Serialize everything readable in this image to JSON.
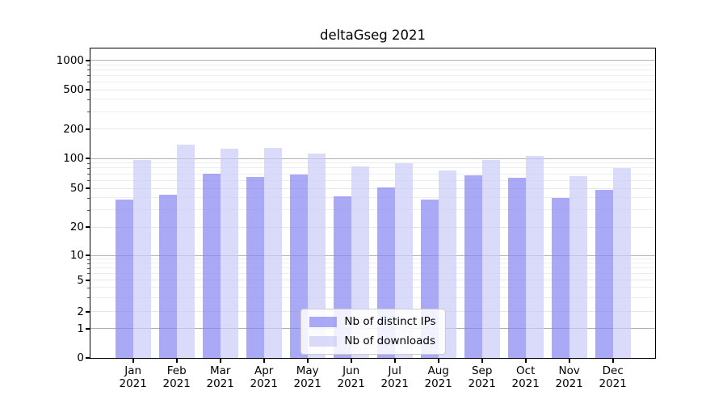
{
  "chart_data": {
    "type": "bar",
    "title": "deltaGseg 2021",
    "categories": [
      "Jan 2021",
      "Feb 2021",
      "Mar 2021",
      "Apr 2021",
      "May 2021",
      "Jun 2021",
      "Jul 2021",
      "Aug 2021",
      "Sep 2021",
      "Oct 2021",
      "Nov 2021",
      "Dec 2021"
    ],
    "x_tick_months": [
      "Jan",
      "Feb",
      "Mar",
      "Apr",
      "May",
      "Jun",
      "Jul",
      "Aug",
      "Sep",
      "Oct",
      "Nov",
      "Dec"
    ],
    "x_tick_year": "2021",
    "series": [
      {
        "name": "Nb of distinct IPs",
        "color": "rgba(133,133,242,0.7)",
        "values": [
          38,
          43,
          70,
          65,
          69,
          41,
          51,
          38,
          67,
          64,
          40,
          48
        ]
      },
      {
        "name": "Nb of downloads",
        "color": "rgba(202,202,248,0.7)",
        "values": [
          97,
          137,
          126,
          127,
          112,
          83,
          90,
          76,
          97,
          106,
          66,
          80
        ]
      }
    ],
    "y_axis": {
      "scale": "symlog",
      "ticks": [
        0,
        1,
        2,
        5,
        10,
        20,
        50,
        100,
        200,
        500,
        1000
      ],
      "minor_gridlines": [
        3,
        4,
        6,
        7,
        8,
        9,
        30,
        40,
        60,
        70,
        80,
        90,
        300,
        400,
        600,
        700,
        800,
        900
      ],
      "ylim": [
        0,
        1000
      ]
    },
    "grid": true,
    "legend_position": "lower center",
    "colors": {
      "major_gridline": "#b0b0b0",
      "labeled_gridline": "#e7e7e7",
      "minor_gridline": "#ededed",
      "spine": "#000000",
      "background": "#ffffff"
    }
  }
}
